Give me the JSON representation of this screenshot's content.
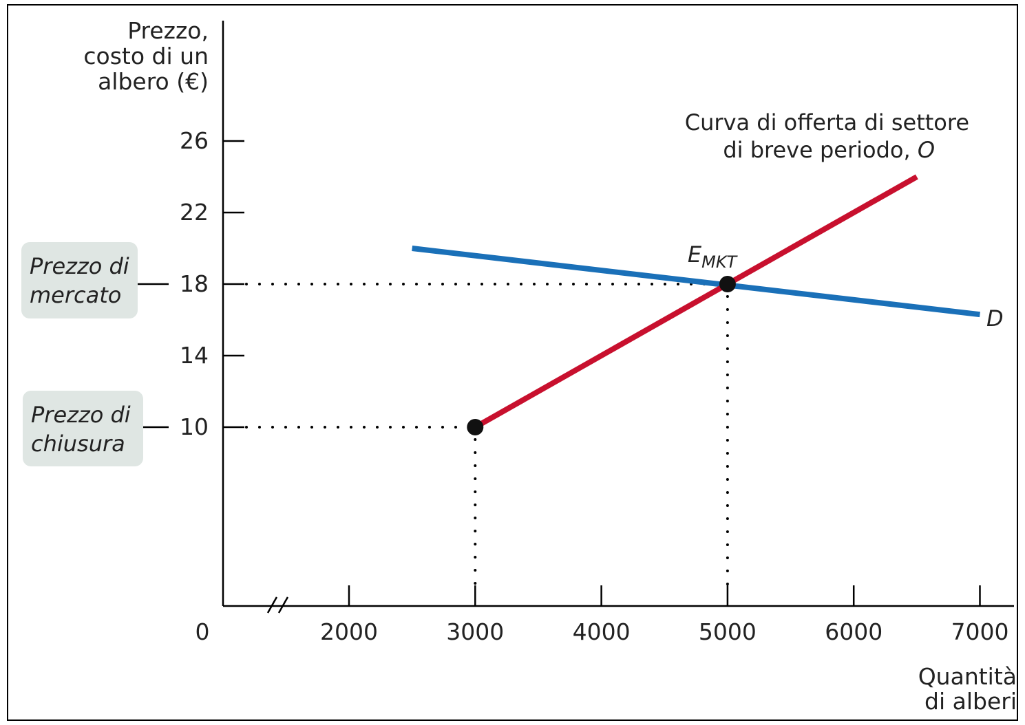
{
  "chart_data": {
    "type": "line",
    "ylabel_lines": [
      "Prezzo,",
      "costo di un",
      "albero (€)"
    ],
    "xlabel_lines": [
      "Quantità",
      "di alberi"
    ],
    "x_ticks": [
      2000,
      3000,
      4000,
      5000,
      6000,
      7000
    ],
    "x_origin_label": "0",
    "x_axis_break": true,
    "y_ticks": [
      10,
      14,
      18,
      22,
      26
    ],
    "xlim": [
      1000,
      7250
    ],
    "ylim": [
      0,
      28
    ],
    "series": [
      {
        "name": "D",
        "color": "#1a70b8",
        "points": [
          [
            2500,
            20
          ],
          [
            7000,
            16.3
          ]
        ]
      },
      {
        "name": "O",
        "color": "#c8102e",
        "points": [
          [
            3000,
            10
          ],
          [
            6500,
            24
          ]
        ]
      }
    ],
    "points": [
      {
        "label": "",
        "x": 3000,
        "y": 10
      },
      {
        "label": "E",
        "label_sub": "MKT",
        "x": 5000,
        "y": 18
      }
    ],
    "reference_lines": [
      {
        "x": 5000,
        "y": 18
      },
      {
        "x": 3000,
        "y": 10
      }
    ],
    "supply_label_lines": [
      "Curva di offerta di settore",
      "di breve periodo, "
    ],
    "supply_label_italic": "O",
    "demand_label": "D",
    "callouts": [
      {
        "lines": [
          "Prezzo di",
          "mercato"
        ],
        "y": 18
      },
      {
        "lines": [
          "Prezzo di",
          "chiusura"
        ],
        "y": 10
      }
    ]
  }
}
